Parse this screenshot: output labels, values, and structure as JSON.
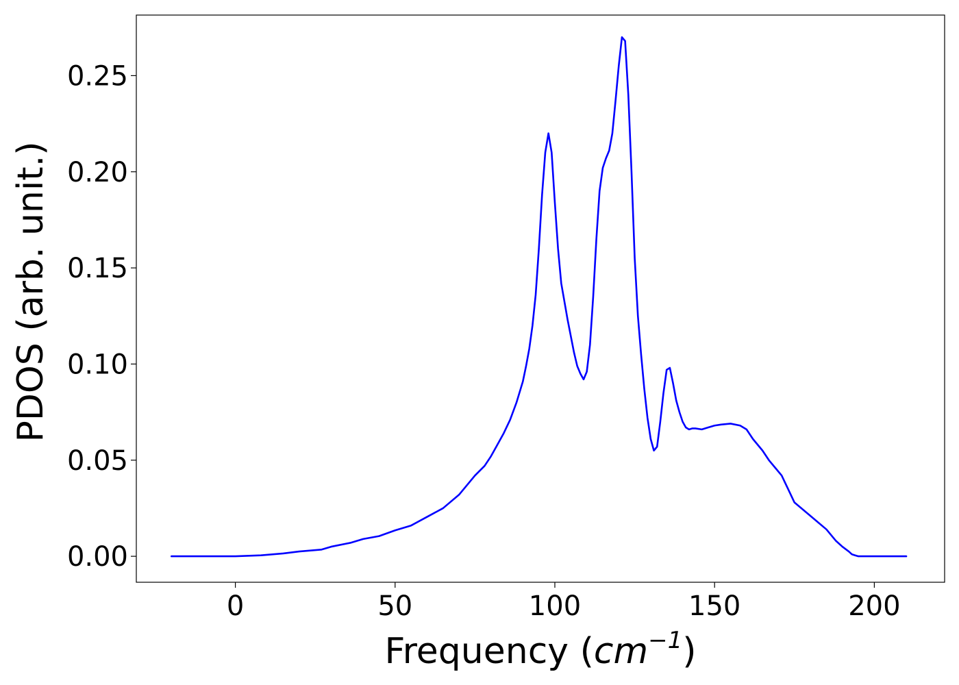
{
  "chart_data": {
    "type": "line",
    "xlabel": "Frequency (cm^-1)",
    "xlabel_parts": {
      "prefix": "Frequency (",
      "var": "cm",
      "exp": "−1",
      "suffix": ")"
    },
    "ylabel": "PDOS (arb. unit.)",
    "xlim": [
      -31,
      222
    ],
    "ylim": [
      -0.0135,
      0.2815
    ],
    "xticks": [
      0,
      50,
      100,
      150,
      200
    ],
    "xtick_labels": [
      "0",
      "50",
      "100",
      "150",
      "200"
    ],
    "yticks": [
      0.0,
      0.05,
      0.1,
      0.15,
      0.2,
      0.25
    ],
    "ytick_labels": [
      "0.00",
      "0.05",
      "0.10",
      "0.15",
      "0.20",
      "0.25"
    ],
    "grid": false,
    "legend": "none",
    "series": [
      {
        "color": "#0000ff",
        "x": [
          -20,
          -10,
          0,
          8,
          15,
          20,
          27,
          30,
          36,
          40,
          45,
          50,
          55,
          60,
          65,
          70,
          75,
          78,
          80,
          82,
          84,
          86,
          88,
          90,
          91,
          92,
          93,
          94,
          95,
          96,
          97,
          98,
          99,
          100,
          101,
          102,
          104,
          106,
          107,
          108,
          109,
          110,
          111,
          112,
          113,
          114,
          115,
          116,
          117,
          118,
          119,
          120,
          121,
          122,
          123,
          124,
          125,
          126,
          127,
          128,
          129,
          130,
          131,
          132,
          133,
          134,
          135,
          136,
          137,
          138,
          139,
          140,
          141,
          142,
          143,
          144,
          146,
          148,
          150,
          152,
          155,
          158,
          160,
          162,
          165,
          167,
          169,
          171,
          173,
          175,
          180,
          185,
          188,
          190,
          192,
          193,
          194,
          195,
          197,
          200,
          210
        ],
        "y": [
          0.0,
          0.0,
          0.0,
          0.0005,
          0.0015,
          0.0025,
          0.0035,
          0.005,
          0.007,
          0.009,
          0.0105,
          0.0135,
          0.016,
          0.0205,
          0.025,
          0.032,
          0.042,
          0.047,
          0.052,
          0.058,
          0.064,
          0.071,
          0.08,
          0.091,
          0.099,
          0.108,
          0.12,
          0.136,
          0.16,
          0.188,
          0.21,
          0.22,
          0.21,
          0.184,
          0.16,
          0.142,
          0.123,
          0.106,
          0.099,
          0.095,
          0.092,
          0.096,
          0.11,
          0.135,
          0.165,
          0.19,
          0.202,
          0.207,
          0.211,
          0.22,
          0.237,
          0.255,
          0.27,
          0.268,
          0.24,
          0.2,
          0.155,
          0.125,
          0.105,
          0.087,
          0.072,
          0.061,
          0.055,
          0.057,
          0.07,
          0.085,
          0.097,
          0.098,
          0.09,
          0.081,
          0.075,
          0.07,
          0.067,
          0.066,
          0.0665,
          0.0665,
          0.066,
          0.067,
          0.068,
          0.0685,
          0.069,
          0.068,
          0.066,
          0.061,
          0.055,
          0.05,
          0.046,
          0.042,
          0.035,
          0.028,
          0.021,
          0.014,
          0.008,
          0.005,
          0.0025,
          0.001,
          0.0005,
          0.0,
          0.0,
          0.0,
          0.0
        ]
      }
    ]
  }
}
